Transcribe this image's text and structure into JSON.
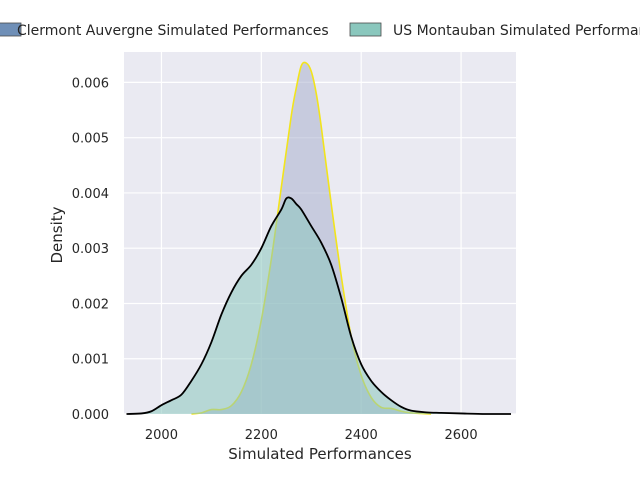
{
  "chart_data": {
    "type": "area",
    "xlabel": "Simulated Performances",
    "ylabel": "Density",
    "xlim": [
      1925,
      2710
    ],
    "ylim": [
      0,
      0.00655
    ],
    "x_ticks": [
      2000,
      2200,
      2400,
      2600
    ],
    "y_ticks": [
      0.0,
      0.001,
      0.002,
      0.003,
      0.004,
      0.005,
      0.006
    ],
    "x_tick_labels": [
      "2000",
      "2200",
      "2400",
      "2600"
    ],
    "y_tick_labels": [
      "0.000",
      "0.001",
      "0.002",
      "0.003",
      "0.004",
      "0.005",
      "0.006"
    ],
    "grid": true,
    "legend_position": "top",
    "series": [
      {
        "name": "Clermont Auvergne Simulated Performances",
        "fill": "#a9b0ce",
        "edge": "#f2e41c",
        "swatch": "#6f8fb7",
        "x": [
          2060,
          2080,
          2100,
          2120,
          2140,
          2160,
          2180,
          2200,
          2220,
          2240,
          2260,
          2270,
          2280,
          2290,
          2300,
          2310,
          2320,
          2340,
          2360,
          2380,
          2400,
          2420,
          2440,
          2460,
          2480,
          2500,
          2520,
          2540
        ],
        "y": [
          0.0,
          2e-05,
          8e-05,
          8e-05,
          0.00015,
          0.0004,
          0.0009,
          0.0017,
          0.0028,
          0.0041,
          0.0054,
          0.0059,
          0.0063,
          0.00635,
          0.0062,
          0.0058,
          0.0052,
          0.0038,
          0.0025,
          0.0014,
          0.0007,
          0.0003,
          0.00012,
          0.0001,
          5e-05,
          2e-05,
          1e-05,
          0.0
        ]
      },
      {
        "name": "US Montauban Simulated Performances",
        "fill": "#8ac7bd",
        "edge": "#000000",
        "swatch": "#8ac7bd",
        "x": [
          1930,
          1960,
          1980,
          2000,
          2020,
          2040,
          2060,
          2080,
          2100,
          2120,
          2140,
          2160,
          2180,
          2200,
          2220,
          2240,
          2250,
          2260,
          2270,
          2280,
          2300,
          2320,
          2340,
          2360,
          2380,
          2400,
          2420,
          2440,
          2460,
          2480,
          2500,
          2530,
          2560,
          2600,
          2650,
          2700
        ],
        "y": [
          0.0,
          1e-05,
          5e-05,
          0.00016,
          0.00025,
          0.00035,
          0.0006,
          0.0009,
          0.0013,
          0.0018,
          0.0022,
          0.0025,
          0.0027,
          0.003,
          0.0034,
          0.0037,
          0.0039,
          0.0039,
          0.0038,
          0.0037,
          0.0034,
          0.0031,
          0.0027,
          0.0021,
          0.0014,
          0.0009,
          0.0006,
          0.0004,
          0.00025,
          0.00013,
          6e-05,
          3e-05,
          2e-05,
          1e-05,
          0.0,
          0.0
        ]
      }
    ]
  }
}
